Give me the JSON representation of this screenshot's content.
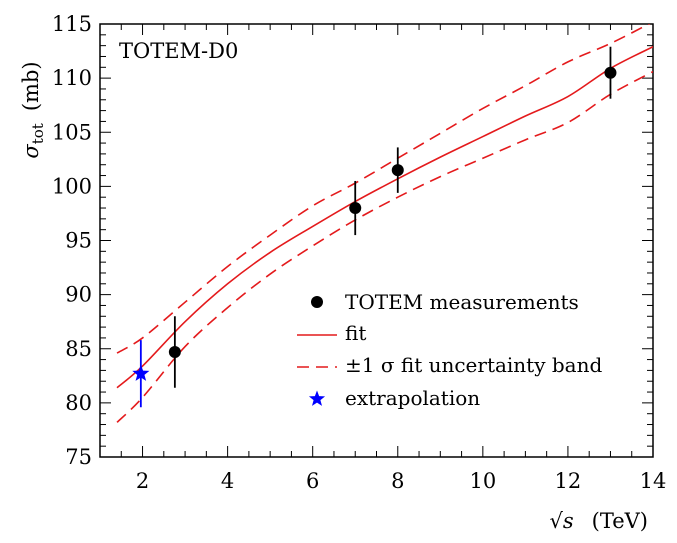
{
  "chart_data": {
    "type": "scatter",
    "annotation": "TOTEM-D0",
    "xlabel": {
      "symbol": "√s",
      "unit": "(TeV)"
    },
    "ylabel": {
      "symbol": "σ",
      "subscript": "tot",
      "unit": "(mb)"
    },
    "xlim": [
      1,
      14
    ],
    "ylim": [
      75,
      115
    ],
    "xticks": [
      2,
      4,
      6,
      8,
      10,
      12,
      14
    ],
    "yticks": [
      75,
      80,
      85,
      90,
      95,
      100,
      105,
      110,
      115
    ],
    "grid": false,
    "legend_position": "bottom-right",
    "series": [
      {
        "name": "TOTEM measurements",
        "kind": "points",
        "color": "#000000",
        "x": [
          2.76,
          7.0,
          8.0,
          13.0
        ],
        "y": [
          84.7,
          98.0,
          101.5,
          110.5
        ],
        "yerr": [
          3.3,
          2.5,
          2.1,
          2.4
        ]
      },
      {
        "name": "fit",
        "kind": "line",
        "color": "#e41a1c",
        "x": [
          1.4,
          2,
          3,
          4,
          5,
          6,
          7,
          8,
          9,
          10,
          11,
          12,
          13,
          14
        ],
        "y": [
          81.4,
          83.4,
          87.5,
          91.0,
          93.9,
          96.3,
          98.6,
          100.7,
          102.7,
          104.6,
          106.5,
          108.3,
          110.9,
          112.9
        ]
      },
      {
        "name": "±1 σ fit uncertainty band",
        "kind": "dashed-band",
        "color": "#e41a1c",
        "x": [
          1.4,
          2,
          3,
          4,
          5,
          6,
          7,
          8,
          9,
          10,
          11,
          12,
          13,
          14
        ],
        "upper": [
          84.6,
          86.0,
          89.3,
          92.6,
          95.5,
          98.2,
          100.3,
          102.6,
          104.9,
          107.2,
          109.3,
          111.5,
          113.2,
          115.2
        ],
        "lower": [
          78.2,
          80.5,
          85.2,
          88.8,
          91.9,
          94.5,
          96.9,
          99.0,
          100.9,
          102.6,
          104.3,
          105.9,
          108.5,
          110.6
        ]
      },
      {
        "name": "extrapolation",
        "kind": "star",
        "color": "#0000ff",
        "x": [
          1.96
        ],
        "y": [
          82.7
        ],
        "yerr": [
          3.1
        ]
      }
    ]
  }
}
